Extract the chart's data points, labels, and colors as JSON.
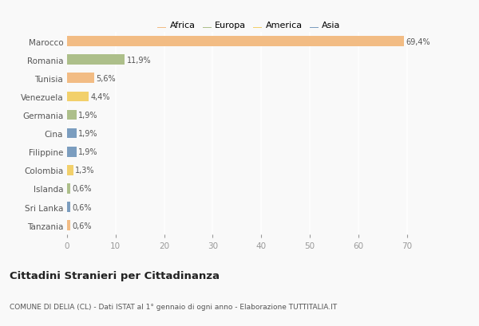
{
  "countries": [
    "Marocco",
    "Romania",
    "Tunisia",
    "Venezuela",
    "Germania",
    "Cina",
    "Filippine",
    "Colombia",
    "Islanda",
    "Sri Lanka",
    "Tanzania"
  ],
  "values": [
    69.4,
    11.9,
    5.6,
    4.4,
    1.9,
    1.9,
    1.9,
    1.3,
    0.6,
    0.6,
    0.6
  ],
  "labels": [
    "69,4%",
    "11,9%",
    "5,6%",
    "4,4%",
    "1,9%",
    "1,9%",
    "1,9%",
    "1,3%",
    "0,6%",
    "0,6%",
    "0,6%"
  ],
  "colors": [
    "#F2BC84",
    "#ADBF8A",
    "#F2BC84",
    "#F2D06B",
    "#ADBF8A",
    "#7B9DBF",
    "#7B9DBF",
    "#F2D06B",
    "#ADBF8A",
    "#7B9DBF",
    "#F2BC84"
  ],
  "legend_labels": [
    "Africa",
    "Europa",
    "America",
    "Asia"
  ],
  "legend_colors": [
    "#F2BC84",
    "#ADBF8A",
    "#F2D06B",
    "#7B9DBF"
  ],
  "xlim": [
    0,
    75
  ],
  "xticks": [
    0,
    10,
    20,
    30,
    40,
    50,
    60,
    70
  ],
  "title": "Cittadini Stranieri per Cittadinanza",
  "subtitle": "COMUNE DI DELIA (CL) - Dati ISTAT al 1° gennaio di ogni anno - Elaborazione TUTTITALIA.IT",
  "bg_color": "#f9f9f9",
  "grid_color": "#ffffff"
}
